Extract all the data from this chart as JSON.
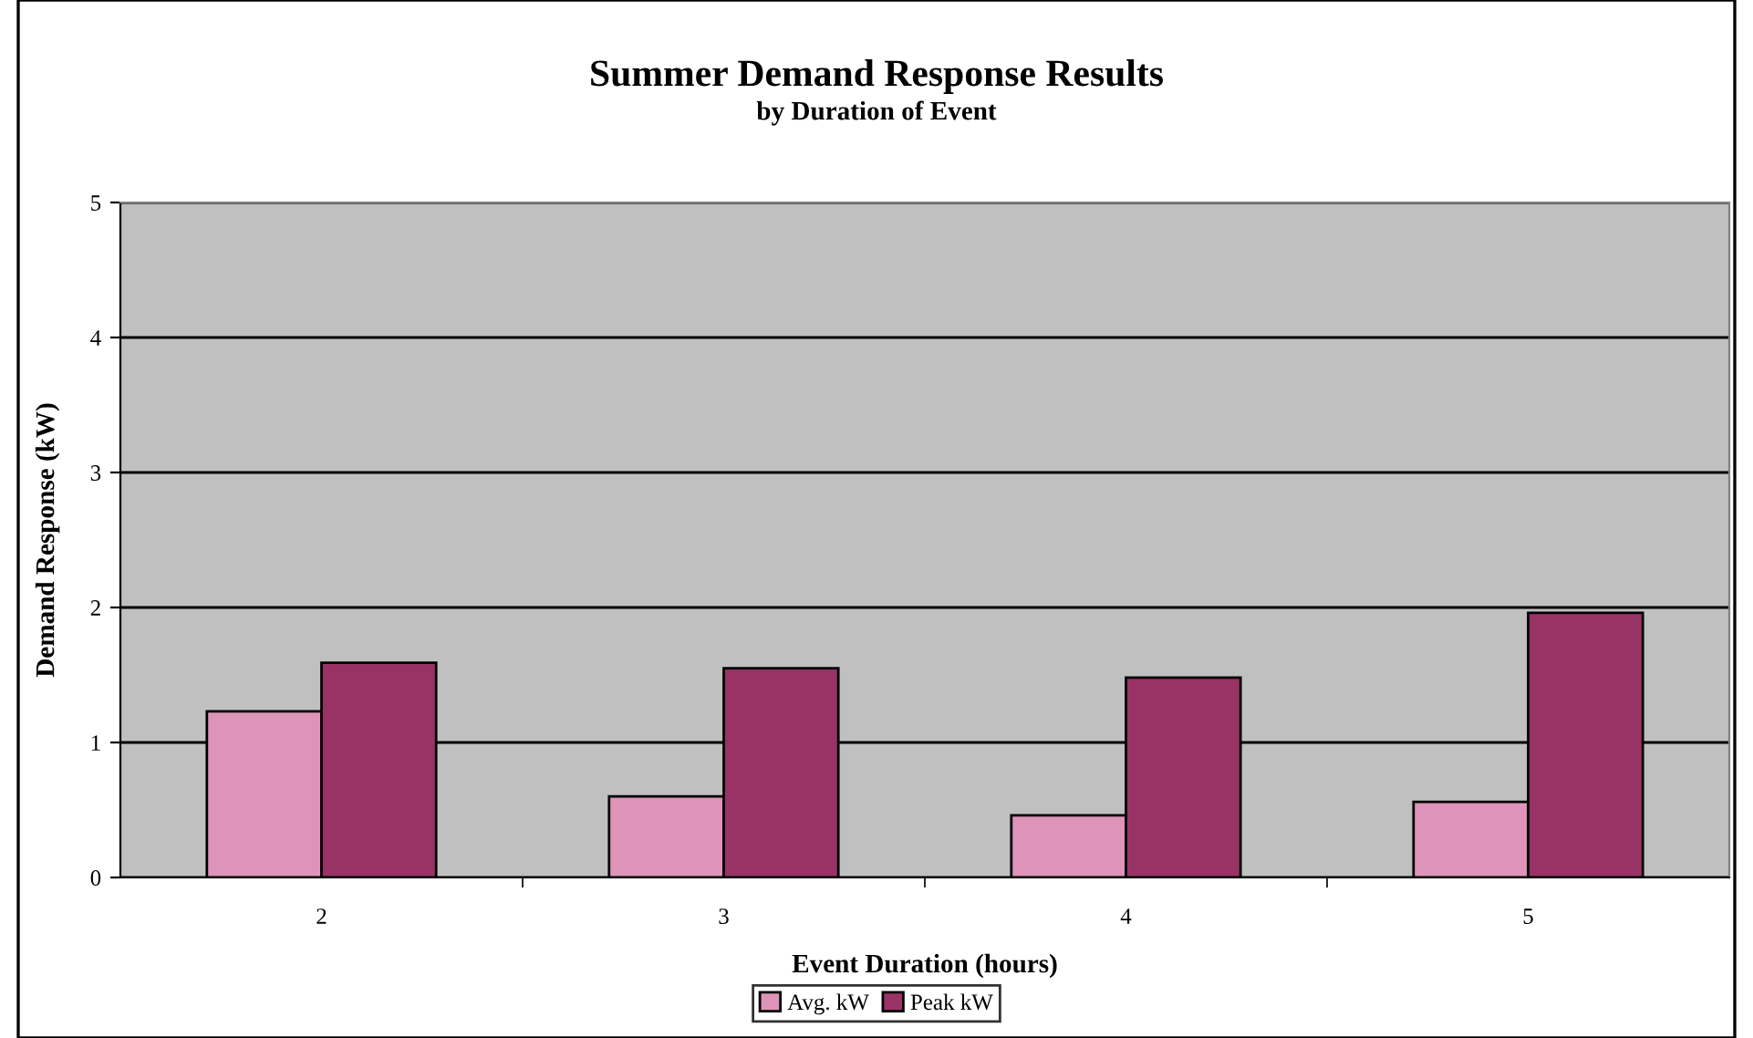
{
  "chart_data": {
    "type": "bar",
    "title": "Summer Demand Response Results",
    "subtitle": "by Duration of Event",
    "xlabel": "Event Duration (hours)",
    "ylabel": "Demand Response (kW)",
    "categories": [
      "2",
      "3",
      "4",
      "5"
    ],
    "series": [
      {
        "name": "Avg. kW",
        "color": "#dd94b8",
        "values": [
          1.23,
          0.6,
          0.46,
          0.56
        ]
      },
      {
        "name": "Peak kW",
        "color": "#993366",
        "values": [
          1.59,
          1.55,
          1.48,
          1.96
        ]
      }
    ],
    "ylim": [
      0,
      5
    ],
    "yticks": [
      0,
      1,
      2,
      3,
      4,
      5
    ],
    "grid": "y",
    "legend": "bottom"
  }
}
